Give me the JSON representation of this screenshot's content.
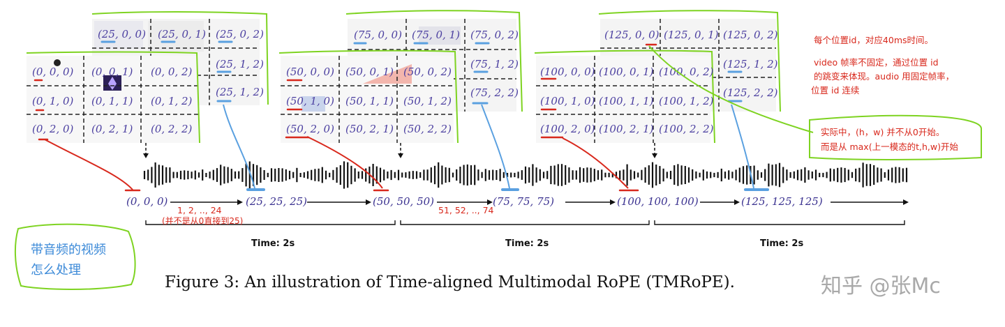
{
  "frames": [
    {
      "cells": [
        [
          "(25, 0, 0)",
          "(25, 0, 1)",
          "(25, 0, 2)"
        ],
        [
          "",
          "",
          "(25, 1, 2)"
        ],
        [
          "",
          "",
          "(25, 1, 2)"
        ]
      ]
    },
    {
      "cells": [
        [
          "(0, 0, 0)",
          "(0, 0, 1)",
          "(0, 0, 2)"
        ],
        [
          "(0, 1, 0)",
          "(0, 1, 1)",
          "(0, 1, 2)"
        ],
        [
          "(0, 2, 0)",
          "(0, 2, 1)",
          "(0, 2, 2)"
        ]
      ]
    },
    {
      "cells": [
        [
          "(75, 0, 0)",
          "(75, 0, 1)",
          "(75, 0, 2)"
        ],
        [
          "",
          "",
          "(75, 1, 2)"
        ],
        [
          "",
          "",
          "(75, 2, 2)"
        ]
      ]
    },
    {
      "cells": [
        [
          "(50, 0, 0)",
          "(50, 0, 1)",
          "(50, 0, 2)"
        ],
        [
          "(50, 1, 0)",
          "(50, 1, 1)",
          "(50, 1, 2)"
        ],
        [
          "(50, 2, 0)",
          "(50, 2, 1)",
          "(50, 2, 2)"
        ]
      ]
    },
    {
      "cells": [
        [
          "(125, 0, 0)",
          "(125, 0, 1)",
          "(125, 0, 2)"
        ],
        [
          "",
          "",
          "(125, 1, 2)"
        ],
        [
          "",
          "",
          "(125, 2, 2)"
        ]
      ]
    },
    {
      "cells": [
        [
          "(100, 0, 0)",
          "(100, 0, 1)",
          "(100, 0, 2)"
        ],
        [
          "(100, 1, 0)",
          "(100, 1, 1)",
          "(100, 1, 2)"
        ],
        [
          "(100, 2, 0)",
          "(100, 2, 1)",
          "(100, 2, 2)"
        ]
      ]
    }
  ],
  "audio_positions": [
    "(0, 0, 0)",
    "(25, 25, 25)",
    "(50, 50, 50)",
    "(75, 75, 75)",
    "(100, 100, 100)",
    "(125, 125, 125)"
  ],
  "time_labels": [
    "Time: 2s",
    "Time: 2s",
    "Time: 2s"
  ],
  "caption": "Figure 3: An illustration of Time-aligned Multimodal RoPE (TMRoPE).",
  "notes": {
    "range1": "1,  2,  .., 24",
    "range1_sub": "(并不是从0直接到25)",
    "range2": "51, 52, .., 74",
    "right_note_line1": "每个位置id，对应40ms时间。",
    "right_note_line2": "video 帧率不固定，通过位置 id",
    "right_note_line3": "的跳变来体现。audio 用固定帧率，",
    "right_note_line4": "位置 id 连续",
    "mid_note_line1": "实际中，(h，w) 并不从0开始。",
    "mid_note_line2": "而是从 max(上一模态的t,h,w)开始",
    "left_note_line1": "带音频的视频",
    "left_note_line2": "怎么处理"
  },
  "watermark": "知乎 @张Mc",
  "colors": {
    "annotation_green": "#7ed321",
    "annotation_red": "#d8281c",
    "annotation_blue": "#5aa0e0",
    "label_purple": "#4b3fa0"
  }
}
